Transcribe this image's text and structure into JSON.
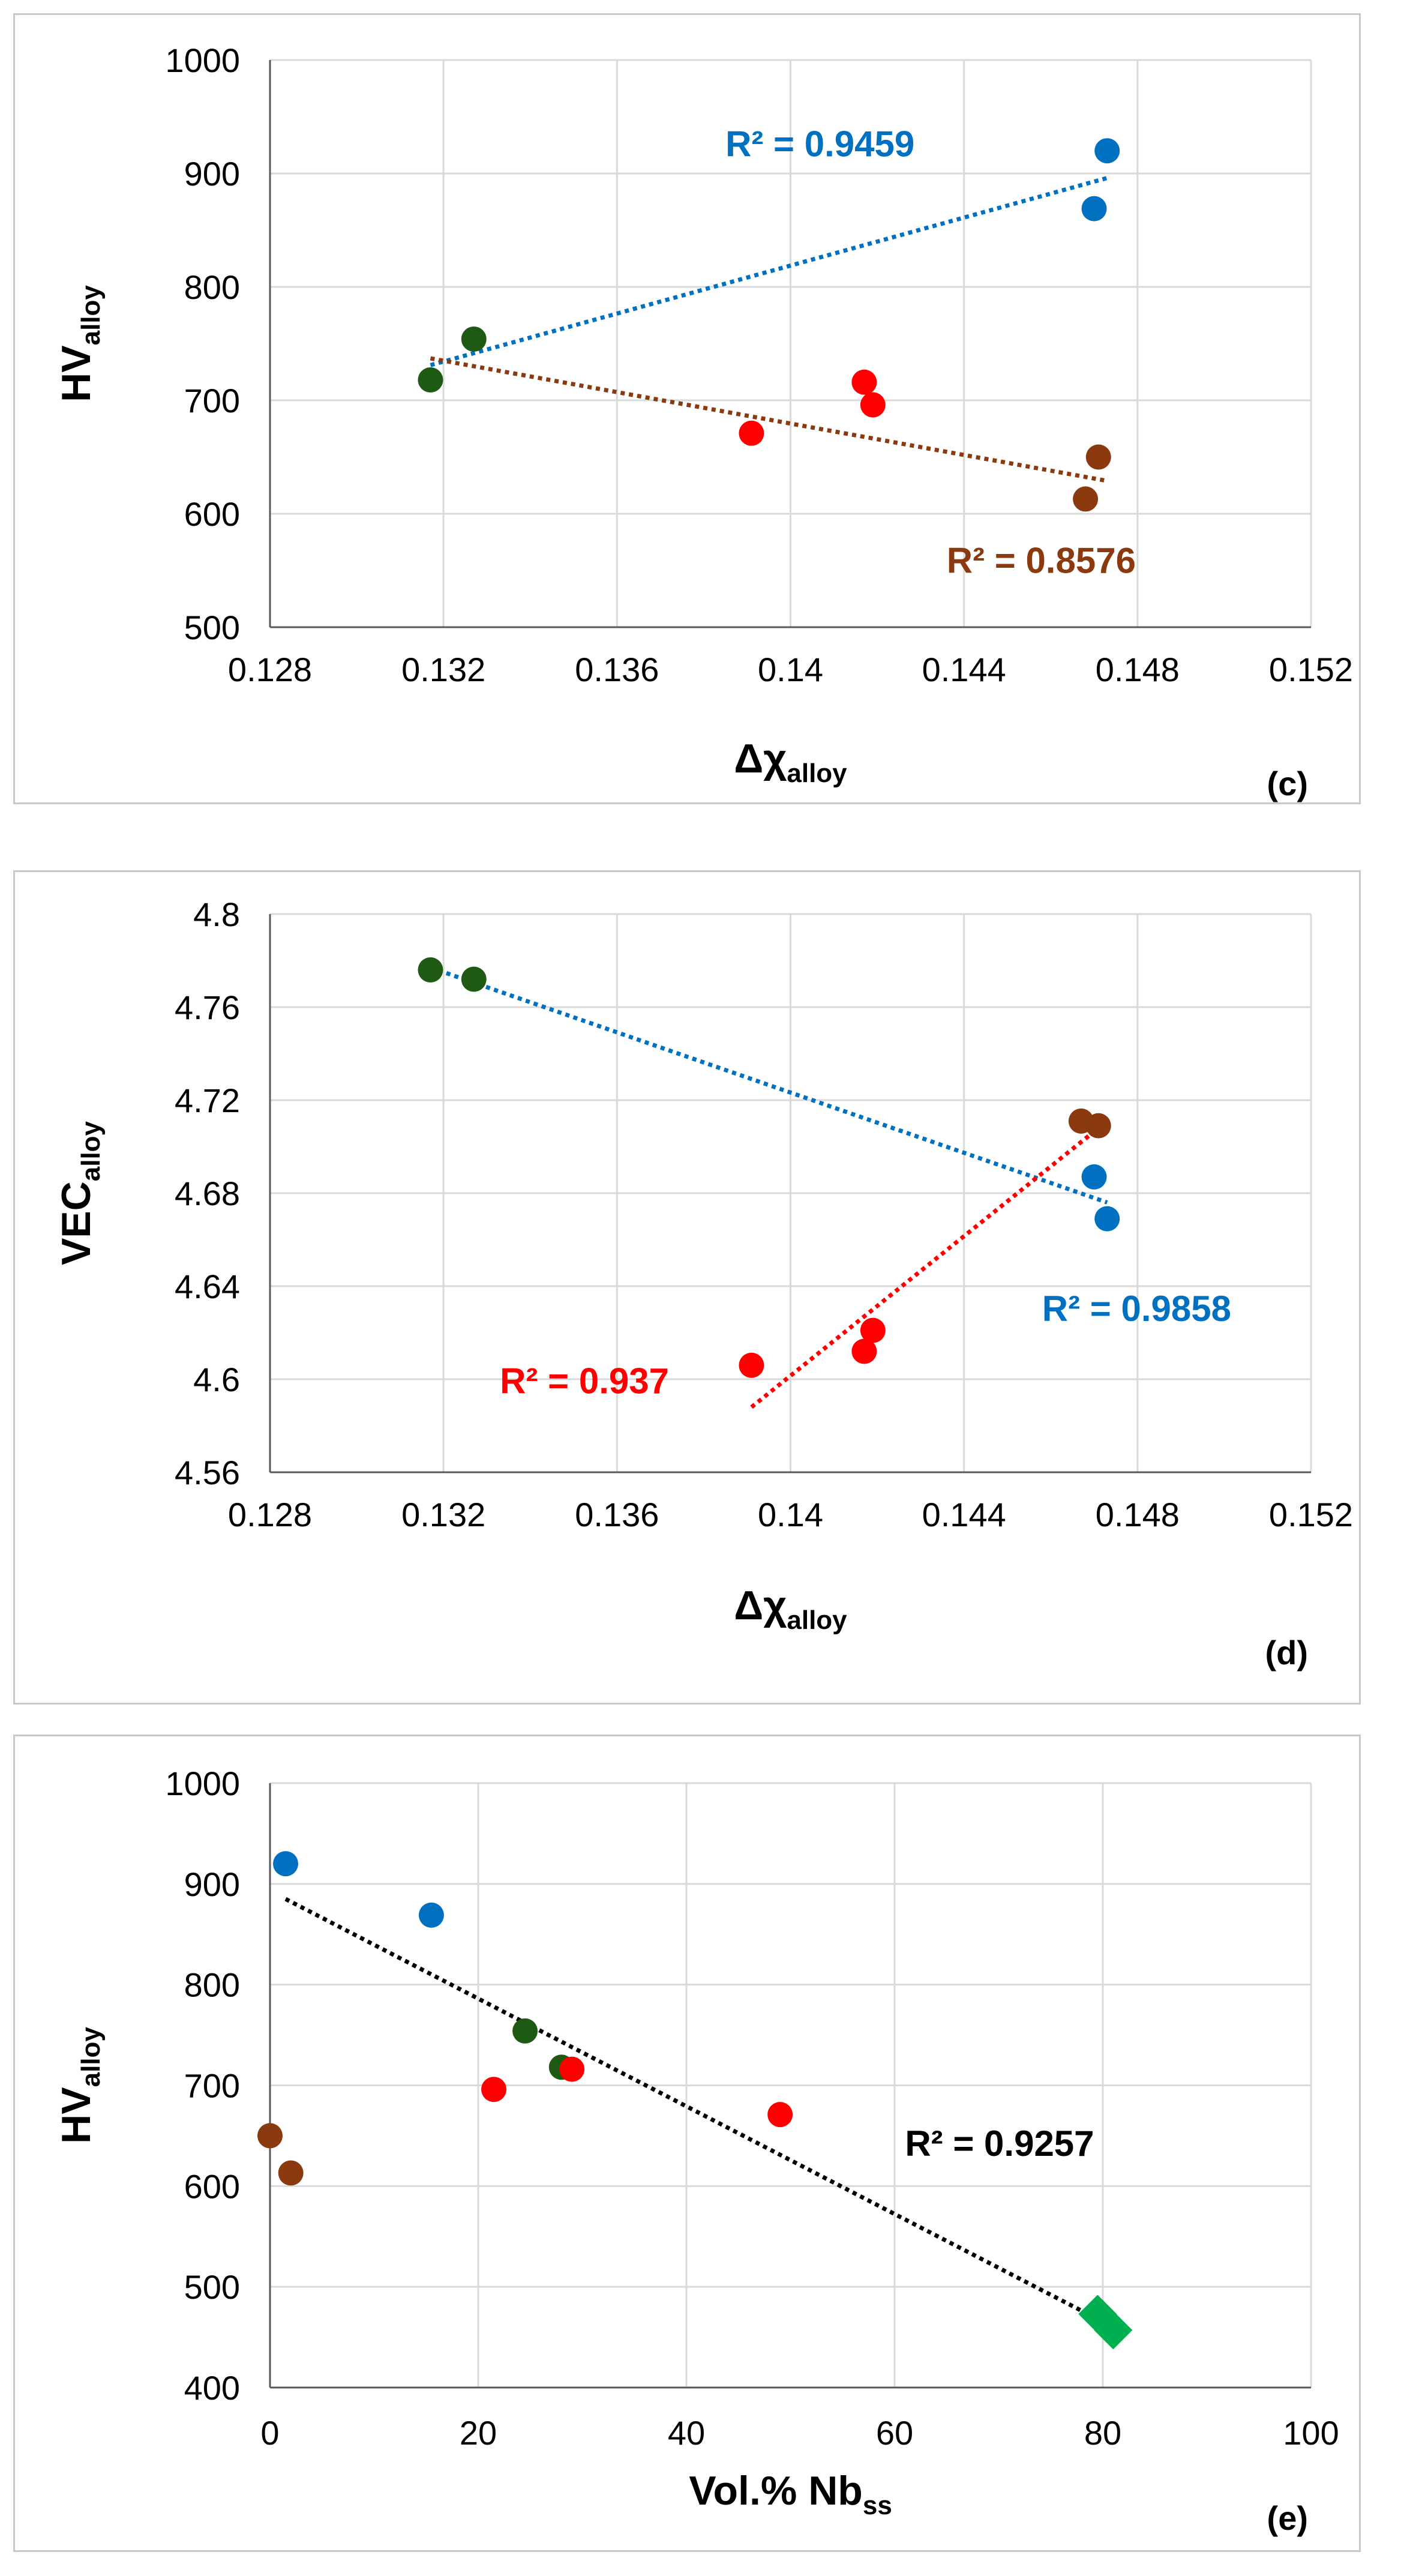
{
  "colors": {
    "blue": "#0070C0",
    "brown": "#8B3A0F",
    "red": "#FF0000",
    "darkgreen": "#1E5A14",
    "green": "#00B050",
    "black": "#000000",
    "grid": "#D9D9D9"
  },
  "chart_data": [
    {
      "type": "scatter",
      "panel_label": "(c)",
      "ylabel": "HV",
      "ylabel_sub": "alloy",
      "xlabel": "Δχ",
      "xlabel_sub": "alloy",
      "xlim": [
        0.128,
        0.152
      ],
      "ylim": [
        500,
        1000
      ],
      "xticks": [
        0.128,
        0.132,
        0.136,
        0.14,
        0.144,
        0.148,
        0.152
      ],
      "xtick_labels": [
        "0.128",
        "0.132",
        "0.136",
        "0.14",
        "0.144",
        "0.148",
        "0.152"
      ],
      "yticks": [
        500,
        600,
        700,
        800,
        900,
        1000
      ],
      "ytick_labels": [
        "500",
        "600",
        "700",
        "800",
        "900",
        "1000"
      ],
      "points": [
        {
          "x": 0.1473,
          "y": 920,
          "color": "blue",
          "shape": "circle"
        },
        {
          "x": 0.147,
          "y": 869,
          "color": "blue",
          "shape": "circle"
        },
        {
          "x": 0.1327,
          "y": 754,
          "color": "darkgreen",
          "shape": "circle"
        },
        {
          "x": 0.1317,
          "y": 718,
          "color": "darkgreen",
          "shape": "circle"
        },
        {
          "x": 0.1417,
          "y": 716,
          "color": "red",
          "shape": "circle"
        },
        {
          "x": 0.1419,
          "y": 696,
          "color": "red",
          "shape": "circle"
        },
        {
          "x": 0.1391,
          "y": 671,
          "color": "red",
          "shape": "circle"
        },
        {
          "x": 0.1471,
          "y": 650,
          "color": "brown",
          "shape": "circle"
        },
        {
          "x": 0.1468,
          "y": 613,
          "color": "brown",
          "shape": "circle"
        }
      ],
      "trendlines": [
        {
          "x1": 0.1317,
          "y1": 731,
          "x2": 0.1473,
          "y2": 896,
          "color": "blue",
          "label": "R² = 0.9459",
          "label_x": 0.1385,
          "label_y": 915
        },
        {
          "x1": 0.1317,
          "y1": 737,
          "x2": 0.1473,
          "y2": 629,
          "color": "brown",
          "label": "R² = 0.8576",
          "label_x": 0.1436,
          "label_y": 548
        }
      ]
    },
    {
      "type": "scatter",
      "panel_label": "(d)",
      "ylabel": "VEC",
      "ylabel_sub": "alloy",
      "xlabel": "Δχ",
      "xlabel_sub": "alloy",
      "xlim": [
        0.128,
        0.152
      ],
      "ylim": [
        4.56,
        4.8
      ],
      "xticks": [
        0.128,
        0.132,
        0.136,
        0.14,
        0.144,
        0.148,
        0.152
      ],
      "xtick_labels": [
        "0.128",
        "0.132",
        "0.136",
        "0.14",
        "0.144",
        "0.148",
        "0.152"
      ],
      "yticks": [
        4.56,
        4.6,
        4.64,
        4.68,
        4.72,
        4.76,
        4.8
      ],
      "ytick_labels": [
        "4.56",
        "4.6",
        "4.64",
        "4.68",
        "4.72",
        "4.76",
        "4.8"
      ],
      "points": [
        {
          "x": 0.1317,
          "y": 4.776,
          "color": "darkgreen",
          "shape": "circle"
        },
        {
          "x": 0.1327,
          "y": 4.772,
          "color": "darkgreen",
          "shape": "circle"
        },
        {
          "x": 0.1467,
          "y": 4.711,
          "color": "brown",
          "shape": "circle"
        },
        {
          "x": 0.1471,
          "y": 4.709,
          "color": "brown",
          "shape": "circle"
        },
        {
          "x": 0.147,
          "y": 4.687,
          "color": "blue",
          "shape": "circle"
        },
        {
          "x": 0.1473,
          "y": 4.669,
          "color": "blue",
          "shape": "circle"
        },
        {
          "x": 0.1419,
          "y": 4.621,
          "color": "red",
          "shape": "circle"
        },
        {
          "x": 0.1417,
          "y": 4.612,
          "color": "red",
          "shape": "circle"
        },
        {
          "x": 0.1391,
          "y": 4.606,
          "color": "red",
          "shape": "circle"
        }
      ],
      "trendlines": [
        {
          "x1": 0.1317,
          "y1": 4.777,
          "x2": 0.1473,
          "y2": 4.676,
          "color": "blue",
          "label": "R² = 0.9858",
          "label_x": 0.1458,
          "label_y": 4.625
        },
        {
          "x1": 0.1391,
          "y1": 4.588,
          "x2": 0.1471,
          "y2": 4.708,
          "color": "red",
          "label": "R² = 0.937",
          "label_x": 0.1333,
          "label_y": 4.594
        }
      ]
    },
    {
      "type": "scatter",
      "panel_label": "(e)",
      "ylabel": "HV",
      "ylabel_sub": "alloy",
      "xlabel": "Vol.% Nb",
      "xlabel_sub": "ss",
      "xlim": [
        0,
        100
      ],
      "ylim": [
        400,
        1000
      ],
      "xticks": [
        0,
        20,
        40,
        60,
        80,
        100
      ],
      "xtick_labels": [
        "0",
        "20",
        "40",
        "60",
        "80",
        "100"
      ],
      "yticks": [
        400,
        500,
        600,
        700,
        800,
        900,
        1000
      ],
      "ytick_labels": [
        "400",
        "500",
        "600",
        "700",
        "800",
        "900",
        "1000"
      ],
      "points": [
        {
          "x": 1.5,
          "y": 920,
          "color": "blue",
          "shape": "circle"
        },
        {
          "x": 15.5,
          "y": 869,
          "color": "blue",
          "shape": "circle"
        },
        {
          "x": 24.5,
          "y": 754,
          "color": "darkgreen",
          "shape": "circle"
        },
        {
          "x": 28.0,
          "y": 718,
          "color": "darkgreen",
          "shape": "circle"
        },
        {
          "x": 29.0,
          "y": 716,
          "color": "red",
          "shape": "circle"
        },
        {
          "x": 21.5,
          "y": 696,
          "color": "red",
          "shape": "circle"
        },
        {
          "x": 49.0,
          "y": 671,
          "color": "red",
          "shape": "circle"
        },
        {
          "x": 0.0,
          "y": 650,
          "color": "brown",
          "shape": "circle"
        },
        {
          "x": 2.0,
          "y": 613,
          "color": "brown",
          "shape": "circle"
        },
        {
          "x": 79.5,
          "y": 473,
          "color": "green",
          "shape": "diamond"
        },
        {
          "x": 81.0,
          "y": 457,
          "color": "green",
          "shape": "diamond"
        }
      ],
      "trendlines": [
        {
          "x1": 1.5,
          "y1": 885,
          "x2": 81.0,
          "y2": 460,
          "color": "black",
          "label": "R² = 0.9257",
          "label_x": 61,
          "label_y": 630
        }
      ]
    }
  ]
}
